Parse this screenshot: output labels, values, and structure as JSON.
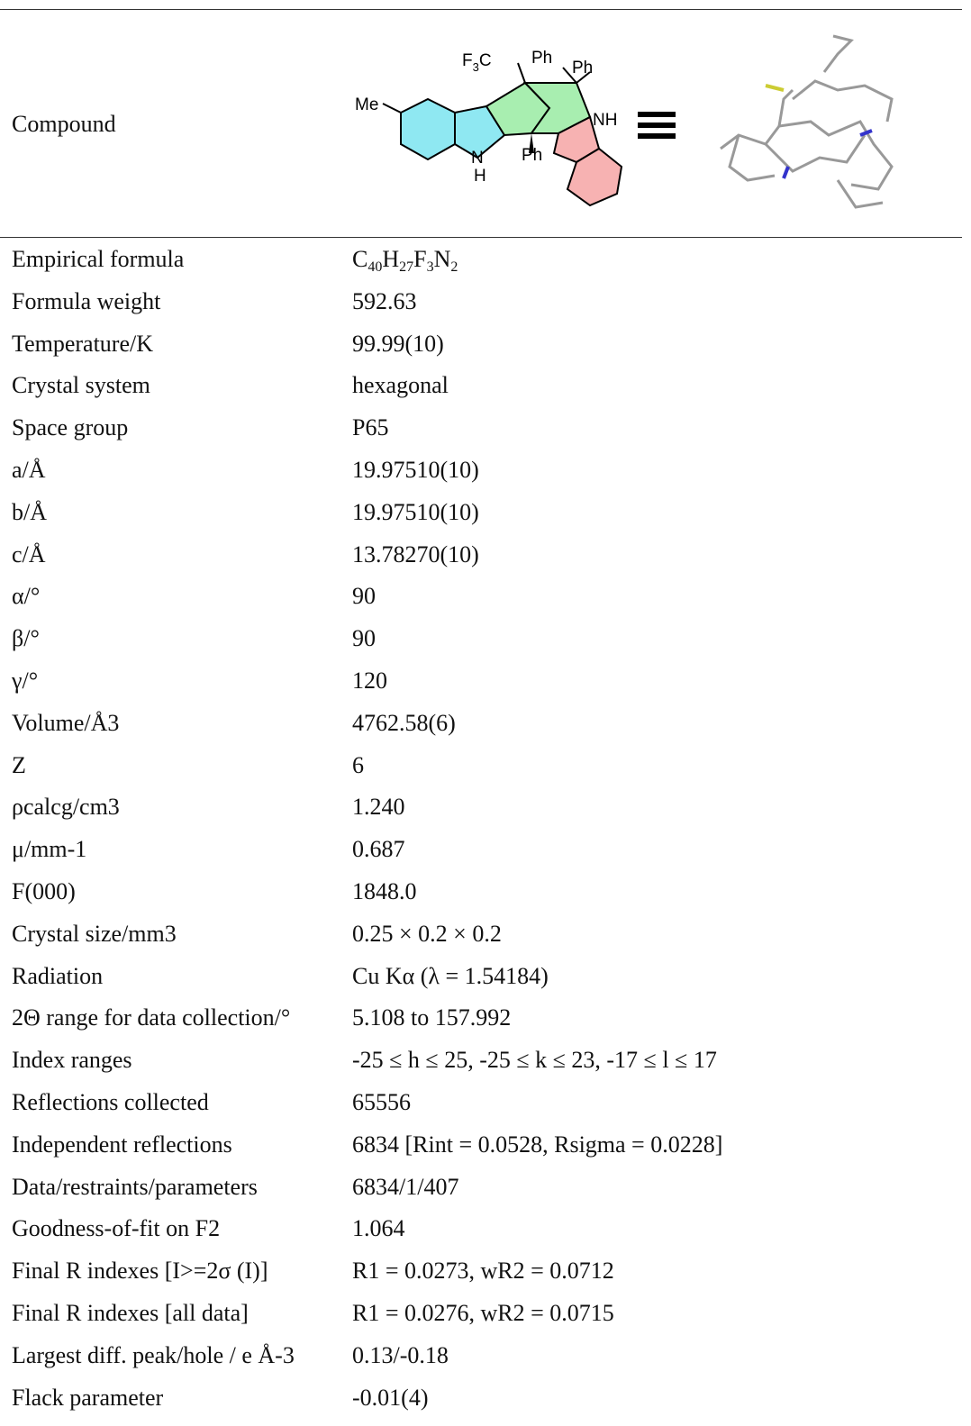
{
  "compound": {
    "label": "Compound",
    "atoms": {
      "me": "Me",
      "cf3_f": "F",
      "cf3_n": "3",
      "cf3_c": "C",
      "ph1": "Ph",
      "ph2": "Ph",
      "ph3": "Ph",
      "nh": "NH",
      "n": "N",
      "h": "H"
    }
  },
  "table": {
    "rows": [
      {
        "label": "Empirical formula",
        "value": [
          {
            "el": "C",
            "n": "40"
          },
          {
            "el": "H",
            "n": "27"
          },
          {
            "el": "F",
            "n": "3"
          },
          {
            "el": "N",
            "n": "2"
          }
        ]
      },
      {
        "label": "Formula weight",
        "value": "592.63"
      },
      {
        "label": "Temperature/K",
        "value": "99.99(10)"
      },
      {
        "label": "Crystal system",
        "value": "hexagonal"
      },
      {
        "label": "Space group",
        "value": "P65"
      },
      {
        "label": "a/Å",
        "value": "19.97510(10)"
      },
      {
        "label": "b/Å",
        "value": "19.97510(10)"
      },
      {
        "label": "c/Å",
        "value": "13.78270(10)"
      },
      {
        "label": "α/°",
        "value": "90"
      },
      {
        "label": "β/°",
        "value": "90"
      },
      {
        "label": "γ/°",
        "value": "120"
      },
      {
        "label": "Volume/Å3",
        "value": "4762.58(6)"
      },
      {
        "label": "Z",
        "value": "6"
      },
      {
        "label": "ρcalcg/cm3",
        "value": "1.240"
      },
      {
        "label": "μ/mm-1",
        "value": "0.687"
      },
      {
        "label": "F(000)",
        "value": "1848.0"
      },
      {
        "label": "Crystal size/mm3",
        "value": "0.25 × 0.2 × 0.2"
      },
      {
        "label": "Radiation",
        "value": "Cu Kα (λ = 1.54184)"
      },
      {
        "label": "2Θ range for data collection/°",
        "value": "5.108 to 157.992"
      },
      {
        "label": "Index ranges",
        "value": "-25 ≤ h ≤ 25, -25 ≤ k ≤ 23, -17 ≤ l ≤ 17"
      },
      {
        "label": "Reflections collected",
        "value": "65556"
      },
      {
        "label": "Independent reflections",
        "value": "6834 [Rint = 0.0528, Rsigma = 0.0228]"
      },
      {
        "label": "Data/restraints/parameters",
        "value": "6834/1/407"
      },
      {
        "label": "Goodness-of-fit on F2",
        "value": "1.064"
      },
      {
        "label": "Final R indexes [I>=2σ (I)]",
        "value": "R1 = 0.0273, wR2 = 0.0712"
      },
      {
        "label": "Final R indexes [all data]",
        "value": "R1 = 0.0276, wR2 = 0.0715"
      },
      {
        "label": "Largest diff. peak/hole / e Å-3",
        "value": "0.13/-0.18"
      },
      {
        "label": "Flack parameter",
        "value": "-0.01(4)"
      }
    ]
  }
}
